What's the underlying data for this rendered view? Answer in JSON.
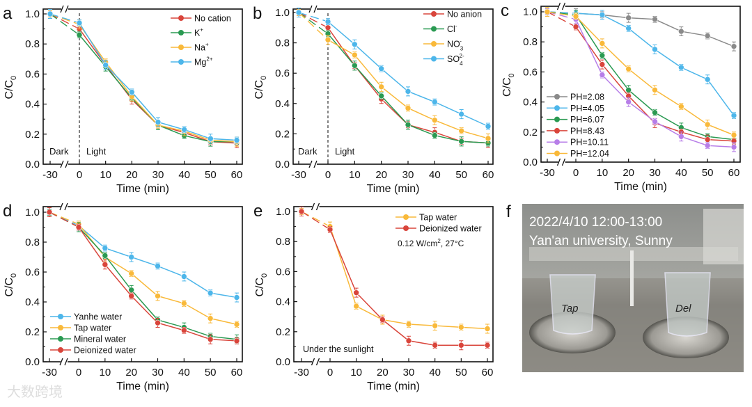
{
  "chart_data": [
    {
      "type": "line",
      "panel_label": "a",
      "xlabel": "Time (min)",
      "ylabel": "C/C",
      "ylabel_sub": "0",
      "x": [
        -30,
        0,
        10,
        20,
        30,
        40,
        50,
        60
      ],
      "xticks": [
        "-30",
        "0",
        "10",
        "20",
        "30",
        "40",
        "50",
        "60"
      ],
      "ylim": [
        0,
        1.0
      ],
      "yticks": [
        "0.0",
        "0.2",
        "0.4",
        "0.6",
        "0.8",
        "1.0"
      ],
      "legend_position": "top-right",
      "annotations": {
        "dark": "Dark",
        "light": "Light"
      },
      "series": [
        {
          "name": "No cation",
          "sup": "",
          "sub": "",
          "color": "#d9453b",
          "values": [
            1.0,
            0.9,
            0.66,
            0.43,
            0.26,
            0.21,
            0.15,
            0.14
          ]
        },
        {
          "name": "K",
          "sup": "+",
          "sub": "",
          "color": "#2a9a52",
          "values": [
            1.0,
            0.86,
            0.65,
            0.44,
            0.26,
            0.19,
            0.15,
            0.15
          ]
        },
        {
          "name": "Na",
          "sup": "+",
          "sub": "",
          "color": "#f9b93a",
          "values": [
            1.0,
            0.93,
            0.68,
            0.45,
            0.26,
            0.22,
            0.16,
            0.15
          ]
        },
        {
          "name": "Mg",
          "sup": "2+",
          "sub": "",
          "color": "#4db6ea",
          "values": [
            1.0,
            0.94,
            0.66,
            0.48,
            0.28,
            0.23,
            0.17,
            0.16
          ]
        }
      ]
    },
    {
      "type": "line",
      "panel_label": "b",
      "xlabel": "Time (min)",
      "ylabel": "C/C",
      "ylabel_sub": "0",
      "x": [
        -30,
        0,
        10,
        20,
        30,
        40,
        50,
        60
      ],
      "xticks": [
        "-30",
        "0",
        "10",
        "20",
        "30",
        "40",
        "50",
        "60"
      ],
      "ylim": [
        0,
        1.0
      ],
      "yticks": [
        "0.0",
        "0.2",
        "0.4",
        "0.6",
        "0.8",
        "1.0"
      ],
      "legend_position": "top-right",
      "annotations": {
        "dark": "Dark",
        "light": "Light"
      },
      "series": [
        {
          "name": "No anion",
          "sup": "",
          "sub": "",
          "color": "#d9453b",
          "values": [
            1.0,
            0.9,
            0.65,
            0.43,
            0.26,
            0.21,
            0.15,
            0.14
          ]
        },
        {
          "name": "Cl",
          "sup": "-",
          "sub": "",
          "color": "#2a9a52",
          "values": [
            1.0,
            0.86,
            0.65,
            0.45,
            0.26,
            0.19,
            0.15,
            0.14
          ]
        },
        {
          "name": "NO",
          "sup": "-",
          "sub": "3",
          "color": "#f9b93a",
          "values": [
            1.0,
            0.82,
            0.72,
            0.51,
            0.37,
            0.29,
            0.22,
            0.17
          ]
        },
        {
          "name": "SO",
          "sup": "2-",
          "sub": "4",
          "color": "#4db6ea",
          "values": [
            1.0,
            0.94,
            0.79,
            0.63,
            0.48,
            0.41,
            0.33,
            0.25
          ]
        }
      ]
    },
    {
      "type": "line",
      "panel_label": "c",
      "xlabel": "Time (min)",
      "ylabel": "C/C",
      "ylabel_sub": "0",
      "x": [
        -30,
        0,
        10,
        20,
        30,
        40,
        50,
        60
      ],
      "xticks": [
        "-30",
        "0",
        "10",
        "20",
        "30",
        "40",
        "50",
        "60"
      ],
      "ylim": [
        0,
        1.0
      ],
      "yticks": [
        "0.0",
        "0.2",
        "0.4",
        "0.6",
        "0.8",
        "1.0"
      ],
      "legend_position": "bottom-left",
      "series": [
        {
          "name": "PH=2.08",
          "sup": "",
          "sub": "",
          "color": "#8a8a8a",
          "values": [
            1.0,
            0.99,
            0.98,
            0.96,
            0.95,
            0.87,
            0.84,
            0.77
          ]
        },
        {
          "name": "PH=4.05",
          "sup": "",
          "sub": "",
          "color": "#4db6ea",
          "values": [
            1.0,
            0.99,
            0.98,
            0.89,
            0.75,
            0.63,
            0.55,
            0.31
          ]
        },
        {
          "name": "PH=6.07",
          "sup": "",
          "sub": "",
          "color": "#2a9a52",
          "values": [
            1.0,
            0.98,
            0.71,
            0.48,
            0.33,
            0.23,
            0.17,
            0.15
          ]
        },
        {
          "name": "PH=8.43",
          "sup": "",
          "sub": "",
          "color": "#d9453b",
          "values": [
            1.0,
            0.9,
            0.65,
            0.44,
            0.26,
            0.2,
            0.15,
            0.14
          ]
        },
        {
          "name": "PH=10.11",
          "sup": "",
          "sub": "",
          "color": "#b77ee8",
          "values": [
            1.0,
            0.95,
            0.58,
            0.4,
            0.27,
            0.17,
            0.11,
            0.1
          ]
        },
        {
          "name": "PH=12.04",
          "sup": "",
          "sub": "",
          "color": "#f9b93a",
          "values": [
            1.0,
            0.97,
            0.79,
            0.62,
            0.48,
            0.37,
            0.25,
            0.18
          ]
        }
      ]
    },
    {
      "type": "line",
      "panel_label": "d",
      "xlabel": "Time (min)",
      "ylabel": "C/C",
      "ylabel_sub": "0",
      "x": [
        -30,
        0,
        10,
        20,
        30,
        40,
        50,
        60
      ],
      "xticks": [
        "-30",
        "0",
        "10",
        "20",
        "30",
        "40",
        "50",
        "60"
      ],
      "ylim": [
        0,
        1.0
      ],
      "yticks": [
        "0.0",
        "0.2",
        "0.4",
        "0.6",
        "0.8",
        "1.0"
      ],
      "legend_position": "bottom-left",
      "series": [
        {
          "name": "Yanhe water",
          "sup": "",
          "sub": "",
          "color": "#4db6ea",
          "values": [
            1.0,
            0.91,
            0.76,
            0.7,
            0.64,
            0.57,
            0.46,
            0.43
          ]
        },
        {
          "name": "Tap water",
          "sup": "",
          "sub": "",
          "color": "#f9b93a",
          "values": [
            1.0,
            0.92,
            0.7,
            0.59,
            0.44,
            0.39,
            0.29,
            0.25
          ]
        },
        {
          "name": "Mineral water",
          "sup": "",
          "sub": "",
          "color": "#2a9a52",
          "values": [
            1.0,
            0.9,
            0.71,
            0.48,
            0.28,
            0.23,
            0.17,
            0.15
          ]
        },
        {
          "name": "Deionized water",
          "sup": "",
          "sub": "",
          "color": "#d9453b",
          "values": [
            1.0,
            0.9,
            0.65,
            0.44,
            0.26,
            0.21,
            0.15,
            0.14
          ]
        }
      ]
    },
    {
      "type": "line",
      "panel_label": "e",
      "xlabel": "Time (min)",
      "ylabel": "C/C",
      "ylabel_sub": "0",
      "x": [
        -30,
        0,
        10,
        20,
        30,
        40,
        50,
        60
      ],
      "xticks": [
        "-30",
        "0",
        "10",
        "20",
        "30",
        "40",
        "50",
        "60"
      ],
      "ylim": [
        0,
        1.0
      ],
      "yticks": [
        "0.0",
        "0.2",
        "0.4",
        "0.6",
        "0.8",
        "1.0"
      ],
      "legend_position": "top-right",
      "annotations": {
        "condition": "0.12 W/cm",
        "condition_sup": "2",
        "condition_tail": ", 27°C",
        "note": "Under the sunlight"
      },
      "series": [
        {
          "name": "Tap water",
          "sup": "",
          "sub": "",
          "color": "#f9b93a",
          "values": [
            1.0,
            0.9,
            0.37,
            0.28,
            0.25,
            0.24,
            0.23,
            0.22
          ]
        },
        {
          "name": "Deionized water",
          "sup": "",
          "sub": "",
          "color": "#d9453b",
          "values": [
            1.0,
            0.88,
            0.46,
            0.28,
            0.14,
            0.11,
            0.11,
            0.11
          ]
        }
      ]
    }
  ],
  "photo": {
    "panel_label": "f",
    "caption_line1": "2022/4/10 12:00-13:00",
    "caption_line2": "Yan'an university, Sunny",
    "beaker_left_label": "Tap",
    "beaker_right_label": "Del"
  },
  "watermark": "大数跨境"
}
